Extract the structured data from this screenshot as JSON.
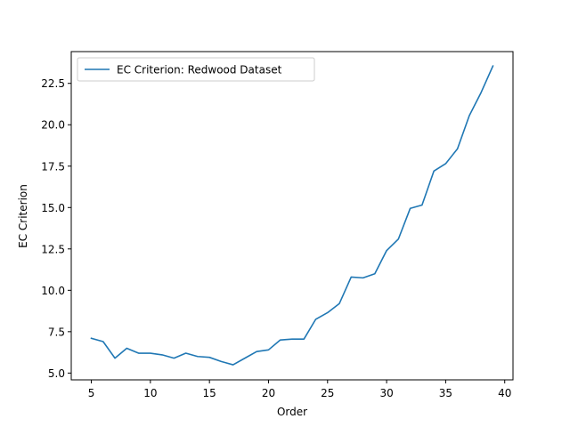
{
  "chart_data": {
    "type": "line",
    "title": "",
    "xlabel": "Order",
    "ylabel": "EC Criterion",
    "xlim": [
      3.3,
      40.7
    ],
    "ylim": [
      4.59,
      24.42
    ],
    "xticks": [
      5,
      10,
      15,
      20,
      25,
      30,
      35,
      40
    ],
    "yticks": [
      5.0,
      7.5,
      10.0,
      12.5,
      15.0,
      17.5,
      20.0,
      22.5
    ],
    "ytick_labels": [
      "5.0",
      "7.5",
      "10.0",
      "12.5",
      "15.0",
      "17.5",
      "20.0",
      "22.5"
    ],
    "grid": false,
    "legend": "upper-left",
    "series": [
      {
        "name": "EC Criterion: Redwood Dataset",
        "color": "#1f77b4",
        "x": [
          5,
          6,
          7,
          8,
          9,
          10,
          11,
          12,
          13,
          14,
          15,
          16,
          17,
          18,
          19,
          20,
          21,
          22,
          23,
          24,
          25,
          26,
          27,
          28,
          29,
          30,
          31,
          32,
          33,
          34,
          35,
          36,
          37,
          38,
          39
        ],
        "y": [
          7.1,
          6.9,
          5.9,
          6.5,
          6.2,
          6.2,
          6.1,
          5.9,
          6.2,
          6.0,
          5.95,
          5.7,
          5.5,
          5.9,
          6.3,
          6.4,
          7.0,
          7.05,
          7.05,
          8.25,
          8.65,
          9.2,
          10.8,
          10.75,
          11.0,
          12.4,
          13.1,
          14.95,
          15.15,
          17.2,
          17.65,
          18.55,
          20.55,
          21.95,
          23.55
        ]
      }
    ]
  }
}
